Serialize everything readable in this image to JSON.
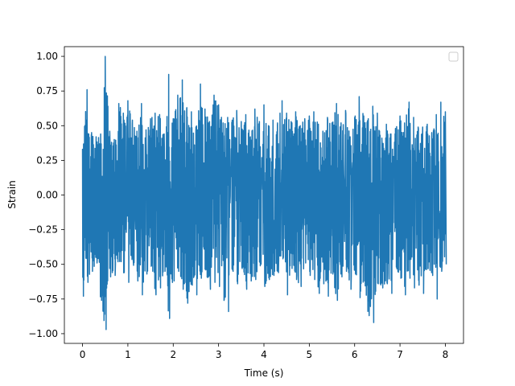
{
  "chart_data": {
    "type": "line",
    "xlabel": "Time (s)",
    "ylabel": "Strain",
    "xlim": [
      -0.4,
      8.4
    ],
    "ylim": [
      -1.07,
      1.07
    ],
    "grid": false,
    "legend": "top-right (empty)",
    "x_ticks": [
      0,
      1,
      2,
      3,
      4,
      5,
      6,
      7,
      8
    ],
    "x_tick_labels": [
      "0",
      "1",
      "2",
      "3",
      "4",
      "5",
      "6",
      "7",
      "8"
    ],
    "y_ticks": [
      -1.0,
      -0.75,
      -0.5,
      -0.25,
      0.0,
      0.25,
      0.5,
      0.75,
      1.0
    ],
    "y_tick_labels": [
      "−1.00",
      "−0.75",
      "−0.50",
      "−0.25",
      "0.00",
      "0.25",
      "0.50",
      "0.75",
      "1.00"
    ],
    "series": [
      {
        "color": "#1f77b4",
        "x": [
          0.0,
          0.1,
          0.2,
          0.3,
          0.4,
          0.5,
          0.6,
          0.7,
          0.8,
          0.9,
          1.0,
          1.1,
          1.2,
          1.3,
          1.4,
          1.5,
          1.6,
          1.7,
          1.8,
          1.9,
          2.0,
          2.1,
          2.2,
          2.3,
          2.4,
          2.5,
          2.6,
          2.7,
          2.8,
          2.9,
          3.0,
          3.1,
          3.2,
          3.3,
          3.4,
          3.5,
          3.6,
          3.7,
          3.8,
          3.9,
          4.0,
          4.1,
          4.2,
          4.3,
          4.4,
          4.5,
          4.6,
          4.7,
          4.8,
          4.9,
          5.0,
          5.1,
          5.2,
          5.3,
          5.4,
          5.5,
          5.6,
          5.7,
          5.8,
          5.9,
          6.0,
          6.1,
          6.2,
          6.3,
          6.4,
          6.5,
          6.6,
          6.7,
          6.8,
          6.9,
          7.0,
          7.1,
          7.2,
          7.3,
          7.4,
          7.5,
          7.6,
          7.7,
          7.8,
          7.9,
          8.0
        ],
        "upper": [
          0.33,
          0.76,
          0.45,
          0.42,
          0.44,
          1.0,
          0.46,
          0.4,
          0.66,
          0.59,
          0.68,
          0.54,
          0.46,
          0.66,
          0.47,
          0.55,
          0.59,
          0.58,
          0.44,
          0.87,
          0.55,
          0.72,
          0.83,
          0.63,
          0.6,
          0.49,
          0.8,
          0.62,
          0.53,
          0.72,
          0.65,
          0.52,
          0.56,
          0.54,
          0.61,
          0.53,
          0.58,
          0.42,
          0.62,
          0.53,
          0.65,
          0.5,
          0.54,
          0.52,
          0.68,
          0.59,
          0.53,
          0.6,
          0.5,
          0.55,
          0.57,
          0.6,
          0.51,
          0.46,
          0.56,
          0.52,
          0.66,
          0.52,
          0.61,
          0.42,
          0.56,
          0.71,
          0.57,
          0.55,
          0.64,
          0.59,
          0.41,
          0.51,
          0.44,
          0.48,
          0.57,
          0.52,
          0.67,
          0.56,
          0.49,
          0.49,
          0.51,
          0.45,
          0.58,
          0.67,
          0.6
        ],
        "lower": [
          -0.73,
          -0.63,
          -0.55,
          -0.49,
          -0.76,
          -0.97,
          -0.59,
          -0.58,
          -0.48,
          -0.56,
          -0.63,
          -0.48,
          -0.62,
          -0.72,
          -0.57,
          -0.51,
          -0.72,
          -0.67,
          -0.55,
          -0.89,
          -0.62,
          -0.55,
          -0.68,
          -0.78,
          -0.65,
          -0.72,
          -0.6,
          -0.54,
          -0.68,
          -0.63,
          -0.66,
          -0.76,
          -0.84,
          -0.55,
          -0.64,
          -0.53,
          -0.68,
          -0.62,
          -0.61,
          -0.51,
          -0.66,
          -0.61,
          -0.58,
          -0.56,
          -0.46,
          -0.72,
          -0.53,
          -0.61,
          -0.66,
          -0.49,
          -0.58,
          -0.61,
          -0.71,
          -0.64,
          -0.73,
          -0.57,
          -0.76,
          -0.59,
          -0.55,
          -0.68,
          -0.57,
          -0.74,
          -0.62,
          -0.87,
          -0.92,
          -0.64,
          -0.67,
          -0.64,
          -0.71,
          -0.52,
          -0.6,
          -0.72,
          -0.6,
          -0.67,
          -0.65,
          -0.71,
          -0.53,
          -0.58,
          -0.75,
          -0.55,
          -0.5
        ]
      }
    ]
  }
}
